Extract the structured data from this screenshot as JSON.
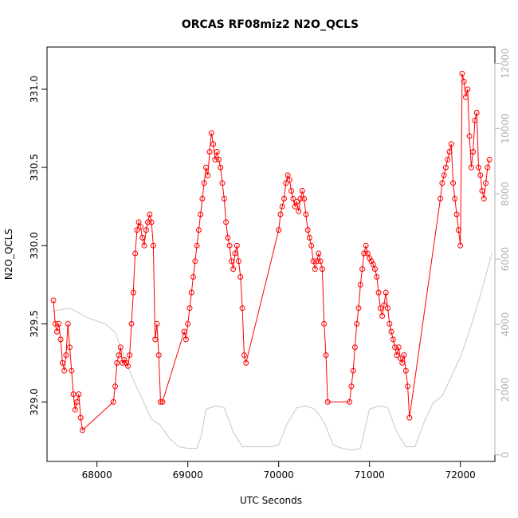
{
  "chart_data": {
    "type": "line",
    "title": "ORCAS RF08miz2 N2O_QCLS",
    "xlabel": "UTC Seconds",
    "ylabel": "N2O_QCLS",
    "xlim": [
      67450,
      72380
    ],
    "ylim": [
      328.62,
      331.27
    ],
    "y2lim": [
      -200,
      12500
    ],
    "x_ticks": [
      68000,
      69000,
      70000,
      71000,
      72000
    ],
    "x_tick_labels": [
      "68000",
      "69000",
      "70000",
      "71000",
      "72000"
    ],
    "y_ticks": [
      329.0,
      329.5,
      330.0,
      330.5,
      331.0
    ],
    "y_tick_labels": [
      "329.0",
      "329.5",
      "330.0",
      "330.5",
      "331.0"
    ],
    "y2_ticks": [
      0,
      2000,
      4000,
      6000,
      8000,
      10000,
      12000
    ],
    "y2_tick_labels": [
      "0",
      "2000",
      "4000",
      "6000",
      "8000",
      "10000",
      "12000"
    ],
    "colors": {
      "primary": "#ff0000",
      "secondary": "#c8c8c8",
      "axis": "#000000",
      "secondary_axis": "#b0b0b0"
    },
    "series": [
      {
        "axis": "left",
        "style": "line+points",
        "color": "#ff0000",
        "x": [
          67520,
          67540,
          67560,
          67580,
          67600,
          67620,
          67640,
          67660,
          67680,
          67700,
          67720,
          67740,
          67760,
          67780,
          67800,
          67820,
          67840,
          68180,
          68200,
          68220,
          68240,
          68260,
          68280,
          68300,
          68320,
          68340,
          68360,
          68380,
          68400,
          68420,
          68440,
          68460,
          68480,
          68500,
          68520,
          68540,
          68560,
          68580,
          68600,
          68620,
          68640,
          68660,
          68680,
          68700,
          68720,
          68960,
          68980,
          69000,
          69020,
          69040,
          69060,
          69080,
          69100,
          69120,
          69140,
          69160,
          69180,
          69200,
          69220,
          69240,
          69260,
          69280,
          69300,
          69320,
          69340,
          69360,
          69380,
          69400,
          69420,
          69440,
          69460,
          69480,
          69500,
          69520,
          69540,
          69560,
          69580,
          69600,
          69620,
          69640,
          70000,
          70020,
          70040,
          70060,
          70080,
          70100,
          70120,
          70140,
          70160,
          70180,
          70200,
          70220,
          70240,
          70260,
          70280,
          70300,
          70320,
          70340,
          70360,
          70380,
          70400,
          70420,
          70440,
          70460,
          70480,
          70500,
          70520,
          70540,
          70780,
          70800,
          70820,
          70840,
          70860,
          70880,
          70900,
          70920,
          70940,
          70960,
          70980,
          71000,
          71020,
          71040,
          71060,
          71080,
          71100,
          71120,
          71140,
          71160,
          71180,
          71200,
          71220,
          71240,
          71260,
          71280,
          71300,
          71320,
          71340,
          71360,
          71380,
          71400,
          71420,
          71440,
          71780,
          71800,
          71820,
          71840,
          71860,
          71880,
          71900,
          71920,
          71940,
          71960,
          71980,
          72000,
          72020,
          72040,
          72060,
          72080,
          72100,
          72120,
          72140,
          72160,
          72180,
          72200,
          72220,
          72240,
          72260,
          72280,
          72300,
          72320
        ],
        "y": [
          329.65,
          329.5,
          329.45,
          329.5,
          329.4,
          329.25,
          329.2,
          329.3,
          329.5,
          329.35,
          329.2,
          329.05,
          328.95,
          329.0,
          329.05,
          328.9,
          328.82,
          329.0,
          329.1,
          329.25,
          329.3,
          329.35,
          329.25,
          329.27,
          329.25,
          329.23,
          329.3,
          329.5,
          329.7,
          329.95,
          330.1,
          330.15,
          330.12,
          330.05,
          330.0,
          330.1,
          330.15,
          330.2,
          330.15,
          330.0,
          329.4,
          329.5,
          329.3,
          329.0,
          329.0,
          329.45,
          329.4,
          329.5,
          329.6,
          329.7,
          329.8,
          329.9,
          330.0,
          330.1,
          330.2,
          330.3,
          330.4,
          330.5,
          330.45,
          330.6,
          330.72,
          330.65,
          330.55,
          330.6,
          330.55,
          330.5,
          330.4,
          330.3,
          330.15,
          330.05,
          330.0,
          329.9,
          329.85,
          329.95,
          330.0,
          329.9,
          329.8,
          329.6,
          329.3,
          329.25,
          330.1,
          330.2,
          330.25,
          330.3,
          330.4,
          330.45,
          330.42,
          330.35,
          330.3,
          330.25,
          330.28,
          330.22,
          330.3,
          330.35,
          330.3,
          330.2,
          330.1,
          330.05,
          330.0,
          329.9,
          329.85,
          329.9,
          329.95,
          329.9,
          329.85,
          329.5,
          329.3,
          329.0,
          329.0,
          329.1,
          329.2,
          329.35,
          329.5,
          329.6,
          329.75,
          329.85,
          329.95,
          330.0,
          329.95,
          329.92,
          329.9,
          329.88,
          329.85,
          329.8,
          329.7,
          329.6,
          329.55,
          329.62,
          329.7,
          329.6,
          329.5,
          329.45,
          329.4,
          329.35,
          329.3,
          329.35,
          329.28,
          329.25,
          329.3,
          329.2,
          329.1,
          328.9,
          330.3,
          330.4,
          330.45,
          330.5,
          330.55,
          330.6,
          330.65,
          330.4,
          330.3,
          330.2,
          330.1,
          330.0,
          331.1,
          331.05,
          330.95,
          331.0,
          330.7,
          330.5,
          330.6,
          330.8,
          330.85,
          330.5,
          330.45,
          330.35,
          330.3,
          330.4,
          330.5,
          330.55
        ]
      },
      {
        "axis": "right",
        "style": "line",
        "color": "#c8c8c8",
        "x": [
          67500,
          67600,
          67700,
          67800,
          67900,
          68000,
          68100,
          68200,
          68300,
          68400,
          68500,
          68600,
          68700,
          68750,
          68800,
          68900,
          69000,
          69100,
          69150,
          69200,
          69300,
          69400,
          69500,
          69600,
          69700,
          69800,
          69900,
          70000,
          70100,
          70200,
          70300,
          70400,
          70500,
          70600,
          70700,
          70800,
          70900,
          71000,
          71100,
          71200,
          71300,
          71400,
          71500,
          71600,
          71700,
          71800,
          71900,
          72000,
          72100,
          72200,
          72300,
          72350
        ],
        "y": [
          4400,
          4450,
          4500,
          4350,
          4200,
          4100,
          4000,
          3750,
          3000,
          2300,
          1700,
          1100,
          900,
          700,
          500,
          250,
          200,
          200,
          600,
          1400,
          1500,
          1450,
          700,
          250,
          250,
          250,
          250,
          300,
          1000,
          1450,
          1500,
          1400,
          1000,
          300,
          200,
          150,
          200,
          1400,
          1500,
          1450,
          700,
          250,
          250,
          1000,
          1600,
          1800,
          2400,
          3000,
          3800,
          4700,
          5700,
          6200
        ]
      }
    ]
  }
}
